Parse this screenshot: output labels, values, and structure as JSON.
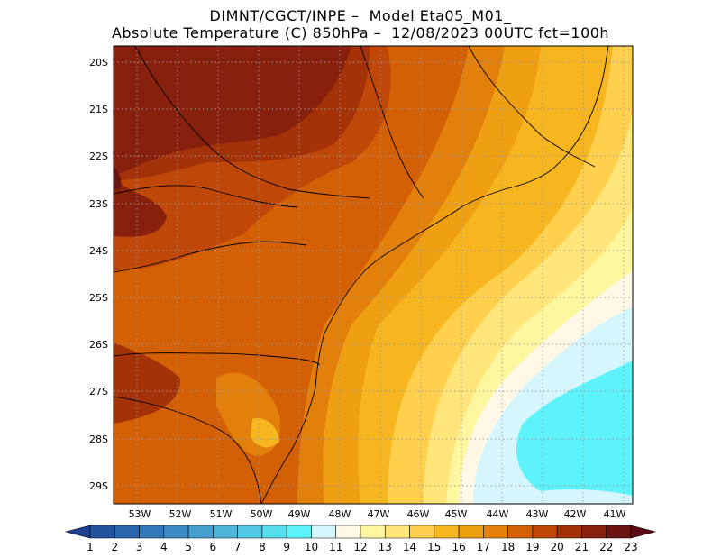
{
  "title_line1": "DIMNT/CGCT/INPE –  Model Eta05_M01_",
  "title_line2": "Absolute Temperature (C) 850hPa –  12/08/2023 00UTC fct=100h",
  "map": {
    "lat_labels": [
      "20S",
      "21S",
      "22S",
      "23S",
      "24S",
      "25S",
      "26S",
      "27S",
      "28S",
      "29S"
    ],
    "lon_labels": [
      "53W",
      "52W",
      "51W",
      "50W",
      "49W",
      "48W",
      "47W",
      "46W",
      "45W",
      "44W",
      "43W",
      "42W",
      "41W"
    ]
  },
  "colorbar": {
    "labels": [
      "1",
      "2",
      "3",
      "4",
      "5",
      "6",
      "7",
      "8",
      "9",
      "10",
      "11",
      "12",
      "13",
      "14",
      "15",
      "16",
      "17",
      "18",
      "19",
      "20",
      "21",
      "22",
      "23"
    ],
    "colors": [
      "#1f3f8f",
      "#23529f",
      "#2a66ae",
      "#3179bb",
      "#3b8cc6",
      "#45a0d0",
      "#4fb4da",
      "#52c8e4",
      "#55ddee",
      "#5ef2fa",
      "#d6f6fd",
      "#fff8e6",
      "#fff6a0",
      "#ffe57a",
      "#ffd04e",
      "#f7b51f",
      "#eea012",
      "#e3800c",
      "#d46006",
      "#bf4708",
      "#a33208",
      "#87210e",
      "#6b1212",
      "#5c0a12"
    ]
  },
  "field_colors": {
    "cyan": "#5ef2fa",
    "cyan_light": "#d6f6fd",
    "cream": "#fff8e6",
    "yellow": "#fff6a0",
    "yellow2": "#ffe57a",
    "yellow3": "#ffd04e",
    "gold": "#f7b51f",
    "orange": "#e3800c",
    "orange_dark": "#d46006",
    "red": "#bf4708",
    "red_dark": "#a33208",
    "brown": "#87210e",
    "brown_dark": "#6b1212"
  }
}
